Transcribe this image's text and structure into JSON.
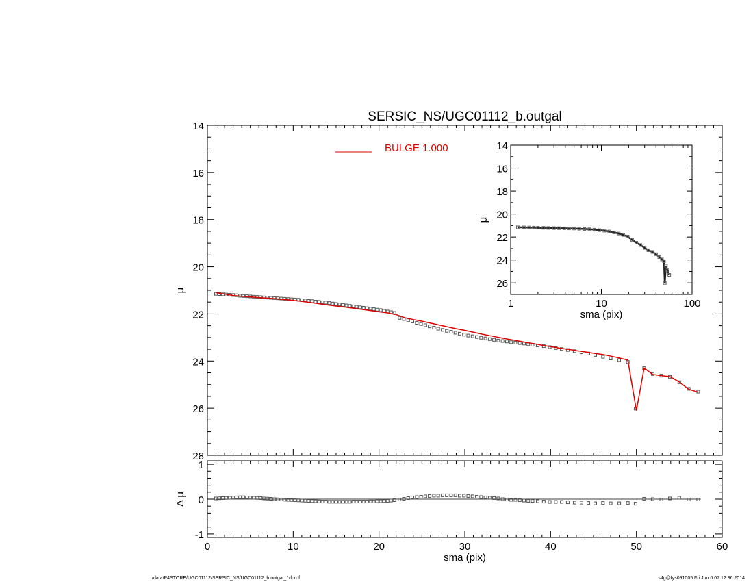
{
  "chart_data": [
    {
      "id": "main",
      "type": "scatter",
      "title": "SERSIC_NS/UGC01112_b.outgal",
      "xlabel": "",
      "ylabel": "μ",
      "xlim": [
        0,
        60
      ],
      "ylim": [
        28,
        14
      ],
      "y_inverted": true,
      "yticks": [
        14,
        16,
        18,
        20,
        22,
        24,
        26,
        28
      ],
      "legend": {
        "position": "top-center",
        "entries": [
          {
            "label": "BULGE  1.000",
            "color": "#dd0000"
          }
        ]
      },
      "series": [
        {
          "kind": "points",
          "marker": "open-square",
          "x": [
            1.0,
            1.4,
            1.8,
            2.2,
            2.6,
            3.0,
            3.4,
            3.8,
            4.2,
            4.6,
            5.0,
            5.4,
            5.8,
            6.2,
            6.6,
            7.0,
            7.4,
            7.8,
            8.2,
            8.6,
            9.0,
            9.4,
            9.8,
            10.2,
            10.6,
            11.0,
            11.4,
            11.8,
            12.2,
            12.6,
            13.0,
            13.4,
            13.8,
            14.2,
            14.6,
            15.0,
            15.4,
            15.8,
            16.2,
            16.6,
            17.0,
            17.4,
            17.8,
            18.2,
            18.6,
            19.0,
            19.4,
            19.8,
            20.2,
            20.6,
            21.0,
            21.4,
            21.8,
            22.4,
            22.9,
            23.4,
            23.9,
            24.4,
            24.9,
            25.4,
            25.9,
            26.4,
            26.9,
            27.4,
            27.9,
            28.4,
            28.9,
            29.4,
            29.9,
            30.4,
            30.9,
            31.4,
            31.9,
            32.4,
            32.9,
            33.4,
            33.9,
            34.4,
            34.9,
            35.4,
            35.9,
            36.4,
            36.9,
            37.4,
            37.9,
            38.5,
            39.2,
            39.9,
            40.6,
            41.3,
            42.0,
            42.8,
            43.6,
            44.4,
            45.2,
            46.1,
            47.0,
            48.0,
            49.0,
            49.9,
            50.9,
            51.9,
            52.9,
            53.9,
            55.0,
            56.1,
            57.2
          ],
          "y": [
            21.15,
            21.16,
            21.17,
            21.18,
            21.19,
            21.2,
            21.21,
            21.23,
            21.24,
            21.25,
            21.26,
            21.27,
            21.28,
            21.29,
            21.3,
            21.31,
            21.32,
            21.33,
            21.34,
            21.35,
            21.36,
            21.37,
            21.38,
            21.39,
            21.4,
            21.42,
            21.43,
            21.45,
            21.46,
            21.48,
            21.49,
            21.51,
            21.52,
            21.54,
            21.56,
            21.58,
            21.6,
            21.62,
            21.64,
            21.66,
            21.68,
            21.7,
            21.72,
            21.74,
            21.76,
            21.78,
            21.8,
            21.82,
            21.84,
            21.87,
            21.9,
            21.93,
            21.96,
            22.17,
            22.22,
            22.27,
            22.32,
            22.38,
            22.43,
            22.48,
            22.53,
            22.58,
            22.63,
            22.68,
            22.72,
            22.76,
            22.8,
            22.84,
            22.88,
            22.92,
            22.95,
            22.98,
            23.01,
            23.04,
            23.07,
            23.1,
            23.13,
            23.15,
            23.17,
            23.2,
            23.22,
            23.24,
            23.26,
            23.29,
            23.31,
            23.34,
            23.37,
            23.41,
            23.45,
            23.49,
            23.53,
            23.58,
            23.63,
            23.68,
            23.74,
            23.82,
            23.89,
            23.96,
            24.04,
            26.02,
            24.3,
            24.55,
            24.62,
            24.67,
            24.9,
            25.18,
            25.3
          ]
        },
        {
          "kind": "line",
          "name": "BULGE  1.000",
          "color": "#dd0000",
          "x": [
            1.0,
            2.0,
            3.0,
            4.0,
            5.0,
            6.0,
            7.0,
            8.0,
            9.0,
            10.0,
            11.0,
            12.0,
            13.0,
            14.0,
            15.0,
            16.0,
            17.0,
            18.0,
            19.0,
            20.0,
            21.0,
            22.0,
            23.0,
            24.0,
            25.0,
            26.0,
            27.0,
            28.0,
            29.0,
            30.0,
            31.0,
            32.0,
            33.0,
            34.0,
            35.0,
            36.0,
            37.0,
            38.0,
            39.0,
            40.0,
            41.0,
            42.0,
            43.0,
            44.0,
            45.0,
            46.0,
            47.0,
            48.0,
            49.0,
            50.0,
            50.9,
            51.9,
            52.9,
            53.9,
            55.0,
            56.1,
            57.2
          ],
          "y": [
            21.1,
            21.16,
            21.22,
            21.25,
            21.28,
            21.31,
            21.33,
            21.36,
            21.39,
            21.43,
            21.47,
            21.52,
            21.57,
            21.62,
            21.67,
            21.71,
            21.76,
            21.81,
            21.86,
            21.91,
            21.96,
            22.03,
            22.16,
            22.24,
            22.31,
            22.39,
            22.47,
            22.55,
            22.63,
            22.7,
            22.78,
            22.86,
            22.93,
            23.0,
            23.07,
            23.13,
            23.2,
            23.26,
            23.33,
            23.39,
            23.45,
            23.5,
            23.56,
            23.61,
            23.67,
            23.72,
            23.79,
            23.87,
            23.96,
            26.1,
            24.3,
            24.57,
            24.62,
            24.66,
            24.89,
            25.2,
            25.32
          ]
        }
      ]
    },
    {
      "id": "residual",
      "type": "scatter",
      "title": "",
      "xlabel": "sma (pix)",
      "ylabel": "Δ μ",
      "xlim": [
        0,
        60
      ],
      "ylim": [
        -1.1,
        1.1
      ],
      "xticks": [
        0,
        10,
        20,
        30,
        40,
        50,
        60
      ],
      "yticks": [
        -1,
        0,
        1
      ],
      "zero_line": true,
      "series": [
        {
          "kind": "points",
          "marker": "open-square",
          "x": [
            1.0,
            1.4,
            1.8,
            2.2,
            2.6,
            3.0,
            3.4,
            3.8,
            4.2,
            4.6,
            5.0,
            5.4,
            5.8,
            6.2,
            6.6,
            7.0,
            7.4,
            7.8,
            8.2,
            8.6,
            9.0,
            9.4,
            9.8,
            10.2,
            10.6,
            11.0,
            11.4,
            11.8,
            12.2,
            12.6,
            13.0,
            13.4,
            13.8,
            14.2,
            14.6,
            15.0,
            15.4,
            15.8,
            16.2,
            16.6,
            17.0,
            17.4,
            17.8,
            18.2,
            18.6,
            19.0,
            19.4,
            19.8,
            20.2,
            20.6,
            21.0,
            21.4,
            21.8,
            22.4,
            22.9,
            23.4,
            23.9,
            24.4,
            24.9,
            25.4,
            25.9,
            26.4,
            26.9,
            27.4,
            27.9,
            28.4,
            28.9,
            29.4,
            29.9,
            30.4,
            30.9,
            31.4,
            31.9,
            32.4,
            32.9,
            33.4,
            33.9,
            34.4,
            34.9,
            35.4,
            35.9,
            36.4,
            36.9,
            37.4,
            37.9,
            38.5,
            39.2,
            39.9,
            40.6,
            41.3,
            42.0,
            42.8,
            43.6,
            44.4,
            45.2,
            46.1,
            47.0,
            48.0,
            49.0,
            49.9,
            50.9,
            51.9,
            52.9,
            53.9,
            55.0,
            56.1,
            57.2
          ],
          "y": [
            0.02,
            0.025,
            0.03,
            0.035,
            0.04,
            0.045,
            0.05,
            0.055,
            0.055,
            0.05,
            0.045,
            0.04,
            0.035,
            0.03,
            0.02,
            0.015,
            0.01,
            0.0,
            -0.005,
            -0.01,
            -0.015,
            -0.02,
            -0.025,
            -0.03,
            -0.035,
            -0.04,
            -0.045,
            -0.05,
            -0.055,
            -0.06,
            -0.065,
            -0.07,
            -0.07,
            -0.075,
            -0.075,
            -0.075,
            -0.075,
            -0.075,
            -0.075,
            -0.075,
            -0.07,
            -0.07,
            -0.07,
            -0.07,
            -0.07,
            -0.065,
            -0.065,
            -0.06,
            -0.06,
            -0.055,
            -0.05,
            -0.04,
            -0.03,
            -0.01,
            0.01,
            0.03,
            0.05,
            0.06,
            0.07,
            0.08,
            0.09,
            0.1,
            0.1,
            0.11,
            0.11,
            0.11,
            0.11,
            0.1,
            0.1,
            0.09,
            0.08,
            0.07,
            0.06,
            0.05,
            0.04,
            0.03,
            0.02,
            0.0,
            -0.01,
            -0.02,
            -0.02,
            -0.03,
            -0.04,
            -0.05,
            -0.05,
            -0.06,
            -0.07,
            -0.08,
            -0.08,
            -0.08,
            -0.09,
            -0.1,
            -0.1,
            -0.11,
            -0.12,
            -0.11,
            -0.12,
            -0.12,
            -0.11,
            -0.13,
            0.01,
            0.0,
            -0.01,
            0.02,
            0.04,
            -0.01,
            -0.01
          ]
        }
      ]
    },
    {
      "id": "inset",
      "type": "scatter",
      "title": "",
      "xlabel": "sma (pix)",
      "ylabel": "μ",
      "xscale": "log",
      "xlim": [
        1,
        100
      ],
      "ylim": [
        27,
        14
      ],
      "y_inverted": true,
      "xticks": [
        1,
        10,
        100
      ],
      "yticks": [
        14,
        16,
        18,
        20,
        22,
        24,
        26
      ],
      "series": [
        {
          "kind": "points",
          "marker": "open-square",
          "x": [
            1.2,
            1.4,
            1.6,
            1.8,
            2.0,
            2.3,
            2.6,
            3.0,
            3.4,
            3.9,
            4.4,
            5.0,
            5.7,
            6.5,
            7.4,
            8.4,
            9.5,
            10.8,
            12.2,
            13.8,
            15.5,
            17.4,
            19.5,
            21.8,
            24.3,
            27.0,
            30.0,
            33.0,
            36.5,
            40.0,
            43.5,
            46.5,
            49.0,
            50.0,
            51.5,
            53.5,
            56.0
          ],
          "y": [
            21.15,
            21.16,
            21.17,
            21.18,
            21.19,
            21.2,
            21.21,
            21.22,
            21.23,
            21.24,
            21.25,
            21.26,
            21.28,
            21.3,
            21.32,
            21.36,
            21.4,
            21.45,
            21.52,
            21.6,
            21.7,
            21.82,
            21.96,
            22.25,
            22.5,
            22.7,
            22.95,
            23.15,
            23.3,
            23.5,
            23.75,
            23.95,
            24.1,
            26.0,
            24.5,
            24.9,
            25.3
          ]
        }
      ]
    }
  ],
  "footer": {
    "left": "/data/P4STORE/UGC01112/SERSIC_NS/UGC01112_b.outgal_1dprof",
    "right": "s4g@fys091005  Fri Jun  6 07:12:36 2014"
  }
}
